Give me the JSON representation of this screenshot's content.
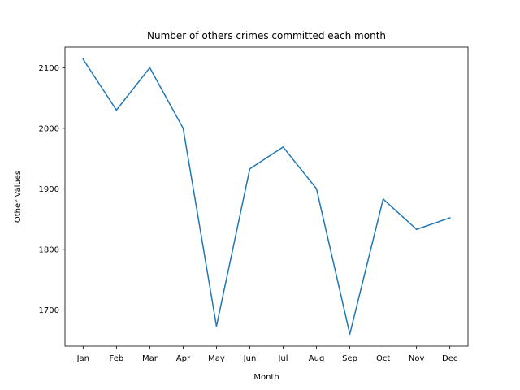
{
  "chart_data": {
    "type": "line",
    "title": "Number of others crimes committed each month",
    "xlabel": "Month",
    "ylabel": "Other Values",
    "categories": [
      "Jan",
      "Feb",
      "Mar",
      "Apr",
      "May",
      "Jun",
      "Jul",
      "Aug",
      "Sep",
      "Oct",
      "Nov",
      "Dec"
    ],
    "series": [
      {
        "values": [
          2114,
          2030,
          2100,
          2000,
          1673,
          1933,
          1969,
          1900,
          1660,
          1883,
          1833,
          1852
        ],
        "color": "#1f77b4"
      }
    ],
    "ylim": [
      1640,
      2134
    ],
    "yticks": [
      1700,
      1800,
      1900,
      2000,
      2100
    ],
    "grid": false,
    "legend": "none"
  }
}
